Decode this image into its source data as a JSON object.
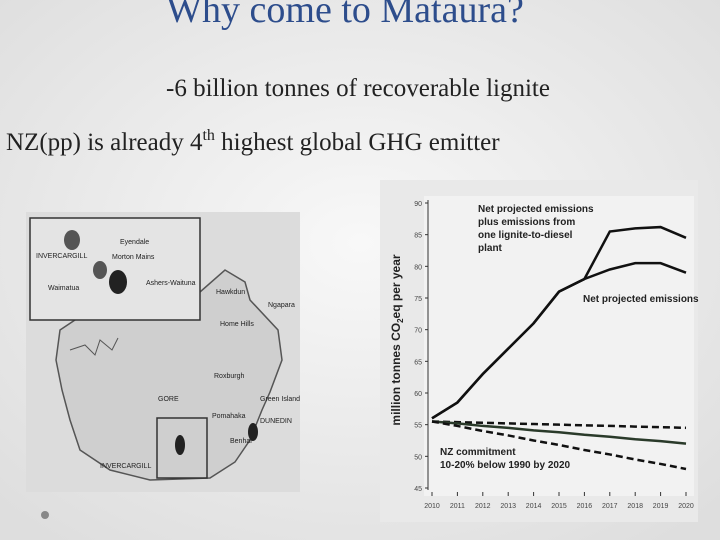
{
  "title": "Why come to Mataura?",
  "bullets": [
    {
      "text": "-6 billion tonnes of recoverable lignite"
    },
    {
      "text": "NZ(pp) is already 4",
      "sup": "th",
      "after": " highest global GHG emitter"
    }
  ],
  "map": {
    "labels": [
      "Eyendale",
      "INVERCARGILL",
      "Morton Mains",
      "Ashers-Waituna",
      "Waimatua",
      "Hawkdun",
      "Ngapara",
      "Home Hills",
      "Roxburgh",
      "GORE",
      "Green Island",
      "Pomahaka",
      "DUNEDIN",
      "Benhar",
      "INVERCARGILL"
    ]
  },
  "chart_data": {
    "type": "line",
    "y_label": [
      "million tonnes CO",
      "2",
      "eq per year"
    ],
    "x": [
      2010,
      2011,
      2012,
      2013,
      2014,
      2015,
      2016,
      2017,
      2018,
      2019,
      2020
    ],
    "xlim": [
      2010,
      2020
    ],
    "xticks": [
      2010,
      2011,
      2012,
      2013,
      2014,
      2015,
      2016,
      2017,
      2018,
      2019,
      2020
    ],
    "ylim": [
      45,
      90
    ],
    "yticks": [
      45,
      50,
      55,
      60,
      65,
      70,
      75,
      80,
      85,
      90
    ],
    "series": [
      {
        "color": "#111111",
        "dash": false,
        "values": [
          56,
          58.5,
          63,
          67,
          71,
          76,
          78,
          85.5,
          86,
          86.2,
          84.5
        ]
      },
      {
        "color": "#111111",
        "dash": false,
        "values": [
          56,
          58.5,
          63,
          67,
          71,
          76,
          78,
          79.5,
          80.5,
          80.5,
          79
        ]
      },
      {
        "color": "#111111",
        "dash": true,
        "values": [
          55.5,
          55.4,
          55.3,
          55.2,
          55.1,
          55,
          54.9,
          54.8,
          54.7,
          54.6,
          54.5
        ]
      },
      {
        "color": "#2a3a2a",
        "dash": false,
        "values": [
          55.5,
          55.2,
          54.8,
          54.5,
          54.1,
          53.8,
          53.4,
          53.1,
          52.7,
          52.4,
          52
        ]
      },
      {
        "color": "#111111",
        "dash": true,
        "values": [
          55.5,
          54.8,
          54,
          53.3,
          52.5,
          51.8,
          51,
          50.3,
          49.5,
          48.8,
          48
        ]
      }
    ],
    "annotations": [
      [
        "Net projected emissions",
        "plus emissions from",
        "one lignite-to-diesel",
        "plant"
      ],
      [
        "Net projected emissions"
      ],
      [
        "NZ commitment",
        "10-20% below 1990 by 2020"
      ]
    ]
  }
}
